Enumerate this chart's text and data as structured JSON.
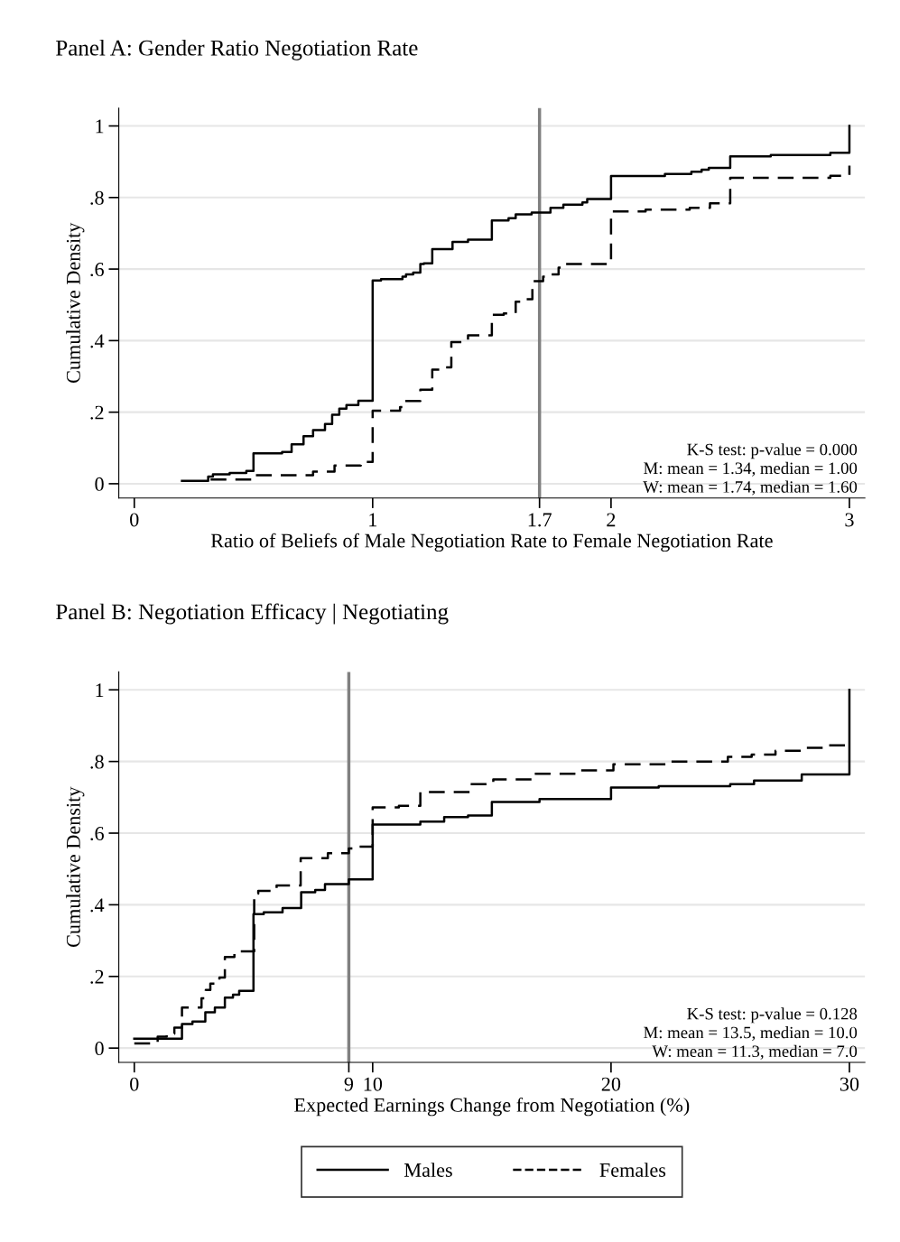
{
  "chart_data": [
    {
      "type": "step",
      "title": "Panel A: Gender Ratio Negotiation Rate",
      "xlabel": "Ratio of Beliefs of Male Negotiation Rate to Female Negotiation Rate",
      "ylabel": "Cumulative Density",
      "xlim": [
        -0.065,
        3.065
      ],
      "ylim": [
        -0.04,
        1.05
      ],
      "xticks": [
        0,
        1,
        1.7,
        2,
        3
      ],
      "yticks": [
        0,
        {
          "value": 0.2,
          "label": ".2"
        },
        {
          "value": 0.4,
          "label": ".4"
        },
        {
          "value": 0.6,
          "label": ".6"
        },
        {
          "value": 0.8,
          "label": ".8"
        },
        1
      ],
      "grid": "y",
      "legend": false,
      "ref_lines": [
        {
          "axis": "x",
          "value": 1.7,
          "color": "#808080"
        }
      ],
      "annotations": [
        "K-S test: p-value = 0.000",
        "M: mean = 1.34, median = 1.00",
        "W: mean = 1.74, median = 1.60"
      ],
      "series": [
        {
          "color": "#000000",
          "line_style": "solid",
          "x": [
            0.2,
            0.31,
            0.33,
            0.4,
            0.47,
            0.5,
            0.62,
            0.66,
            0.71,
            0.75,
            0.8,
            0.83,
            0.86,
            0.89,
            0.94,
            1.0,
            1.035,
            1.125,
            1.14,
            1.17,
            1.2,
            1.215,
            1.25,
            1.335,
            1.4,
            1.5,
            1.57,
            1.6,
            1.667,
            1.746,
            1.8,
            1.88,
            1.9,
            2.0,
            2.226,
            2.337,
            2.38,
            2.41,
            2.5,
            2.67,
            2.92,
            3.0
          ],
          "values": [
            0.008,
            0.02,
            0.026,
            0.03,
            0.036,
            0.085,
            0.089,
            0.11,
            0.133,
            0.15,
            0.167,
            0.193,
            0.21,
            0.22,
            0.232,
            0.568,
            0.572,
            0.579,
            0.585,
            0.59,
            0.614,
            0.616,
            0.656,
            0.676,
            0.682,
            0.736,
            0.742,
            0.753,
            0.758,
            0.771,
            0.78,
            0.786,
            0.796,
            0.86,
            0.866,
            0.872,
            0.878,
            0.883,
            0.915,
            0.919,
            0.925,
            1.0
          ]
        },
        {
          "color": "#000000",
          "line_style": "dashed",
          "x": [
            0.32,
            0.5,
            0.75,
            0.84,
            0.95,
            1.0,
            1.115,
            1.13,
            1.2,
            1.25,
            1.29,
            1.33,
            1.4,
            1.5,
            1.55,
            1.6,
            1.636,
            1.67,
            1.715,
            1.75,
            1.78,
            1.81,
            2.0,
            2.145,
            2.33,
            2.415,
            2.5,
            2.92,
            3.0
          ],
          "values": [
            0.012,
            0.024,
            0.034,
            0.051,
            0.061,
            0.204,
            0.214,
            0.231,
            0.263,
            0.319,
            0.325,
            0.396,
            0.415,
            0.472,
            0.476,
            0.509,
            0.516,
            0.566,
            0.579,
            0.585,
            0.604,
            0.614,
            0.761,
            0.766,
            0.771,
            0.784,
            0.855,
            0.861,
            0.889
          ]
        }
      ]
    },
    {
      "type": "step",
      "title": "Panel B: Negotiation Efficacy | Negotiating",
      "xlabel": "Expected Earnings Change from Negotiation (%)",
      "ylabel": "Cumulative Density",
      "xlim": [
        -0.65,
        30.65
      ],
      "ylim": [
        -0.04,
        1.05
      ],
      "xticks": [
        0,
        9,
        10,
        20,
        30
      ],
      "yticks": [
        0,
        {
          "value": 0.2,
          "label": ".2"
        },
        {
          "value": 0.4,
          "label": ".4"
        },
        {
          "value": 0.6,
          "label": ".6"
        },
        {
          "value": 0.8,
          "label": ".8"
        },
        1
      ],
      "grid": "y",
      "legend": "bottom",
      "ref_lines": [
        {
          "axis": "x",
          "value": 9,
          "color": "#808080"
        }
      ],
      "annotations": [
        "K-S test: p-value = 0.128",
        "M: mean = 13.5, median = 10.0",
        "W: mean = 11.3, median = 7.0"
      ],
      "series": [
        {
          "name": "Males",
          "color": "#000000",
          "line_style": "solid",
          "x": [
            0,
            2.0,
            2.44,
            2.98,
            3.38,
            3.8,
            4.14,
            4.4,
            5.0,
            5.43,
            6.22,
            7.0,
            7.59,
            8.0,
            9.0,
            10.0,
            12.0,
            13.0,
            14.0,
            15.0,
            17.0,
            20.0,
            22.0,
            25.0,
            26.0,
            28.0,
            30.0
          ],
          "values": [
            0.026,
            0.067,
            0.074,
            0.1,
            0.113,
            0.141,
            0.149,
            0.16,
            0.374,
            0.379,
            0.391,
            0.435,
            0.441,
            0.458,
            0.471,
            0.624,
            0.632,
            0.645,
            0.649,
            0.687,
            0.695,
            0.727,
            0.731,
            0.737,
            0.747,
            0.764,
            1.0
          ]
        },
        {
          "name": "Females",
          "color": "#000000",
          "line_style": "dashed",
          "x": [
            0,
            0.98,
            1.36,
            1.68,
            2.0,
            2.82,
            3.0,
            3.19,
            3.57,
            3.8,
            4.2,
            5.03,
            5.2,
            5.97,
            6.98,
            8.12,
            9.0,
            9.38,
            10.0,
            11.1,
            12.0,
            14.1,
            15.06,
            16.7,
            18.6,
            20.1,
            22.4,
            24.9,
            25.9,
            26.9,
            28.0,
            29.1,
            30.0
          ],
          "values": [
            0.013,
            0.032,
            0.04,
            0.057,
            0.113,
            0.139,
            0.162,
            0.18,
            0.197,
            0.254,
            0.27,
            0.431,
            0.439,
            0.454,
            0.53,
            0.544,
            0.557,
            0.562,
            0.672,
            0.676,
            0.715,
            0.737,
            0.75,
            0.766,
            0.775,
            0.792,
            0.8,
            0.813,
            0.819,
            0.83,
            0.838,
            0.845,
            0.845
          ]
        }
      ]
    }
  ]
}
